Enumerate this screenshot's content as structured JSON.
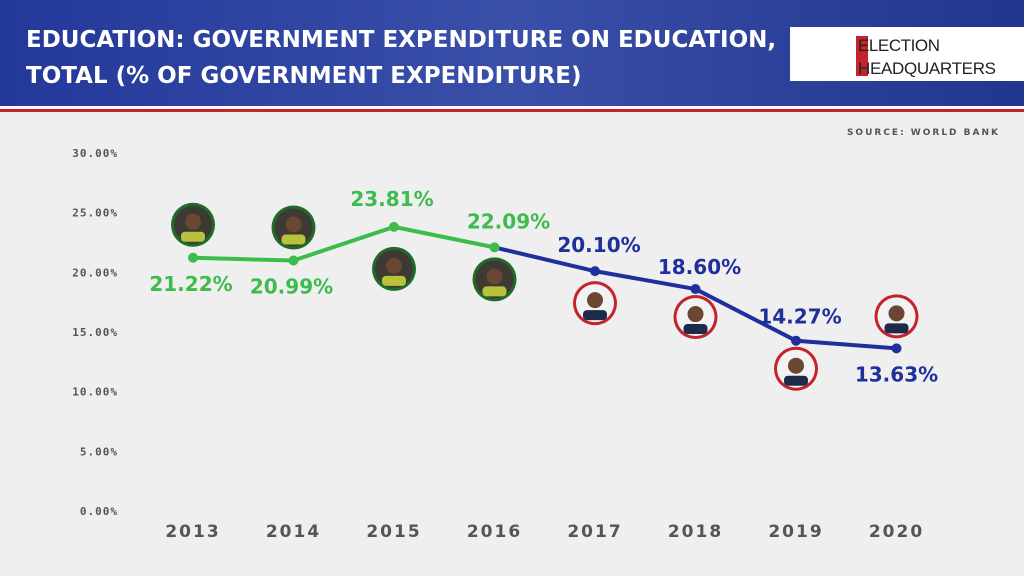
{
  "chart_data": {
    "type": "line",
    "title_lines": [
      "EDUCATION: GOVERNMENT EXPENDITURE ON EDUCATION,",
      "TOTAL (% OF GOVERNMENT EXPENDITURE)"
    ],
    "logo_lines": [
      "ELECTION",
      "HEADQUARTERS"
    ],
    "source": "SOURCE: WORLD BANK",
    "categories": [
      "2013",
      "2014",
      "2015",
      "2016",
      "2017",
      "2018",
      "2019",
      "2020"
    ],
    "values": [
      21.22,
      20.99,
      23.81,
      22.09,
      20.1,
      18.6,
      14.27,
      13.63
    ],
    "value_labels": [
      "21.22%",
      "20.99%",
      "23.81%",
      "22.09%",
      "20.10%",
      "18.60%",
      "14.27%",
      "13.63%"
    ],
    "point_colors": [
      "#3cbc4c",
      "#3cbc4c",
      "#3cbc4c",
      "#3cbc4c",
      "#1f2f9c",
      "#1f2f9c",
      "#1f2f9c",
      "#1f2f9c"
    ],
    "ylim": [
      0,
      30
    ],
    "yticks": [
      {
        "value": 0,
        "label": "0.00%"
      },
      {
        "value": 5,
        "label": "5.00%"
      },
      {
        "value": 10,
        "label": "10.00%"
      },
      {
        "value": 15,
        "label": "15.00%"
      },
      {
        "value": 20,
        "label": "20.00%"
      },
      {
        "value": 25,
        "label": "25.00%"
      },
      {
        "value": 30,
        "label": "30.00%"
      }
    ]
  }
}
